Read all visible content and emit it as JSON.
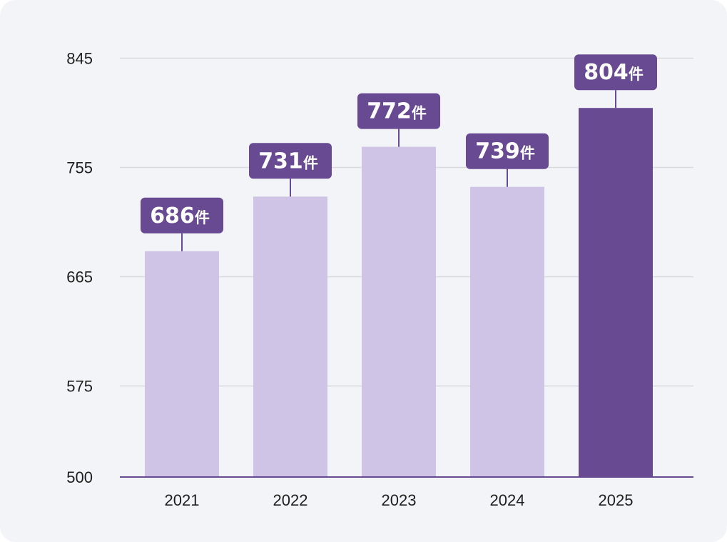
{
  "chart_data": {
    "type": "bar",
    "categories": [
      "2021",
      "2022",
      "2023",
      "2024",
      "2025"
    ],
    "values": [
      686,
      731,
      772,
      739,
      804
    ],
    "value_unit": "件",
    "yticks": [
      845,
      755,
      665,
      575,
      500
    ],
    "ylim": [
      500,
      845
    ],
    "highlight_index": 4,
    "grid": true,
    "colors": {
      "bar": "#cfc3e6",
      "bar_highlight": "#684a93",
      "label_box": "#684a93",
      "grid": "#d9d9de",
      "axis": "#684a93"
    }
  }
}
